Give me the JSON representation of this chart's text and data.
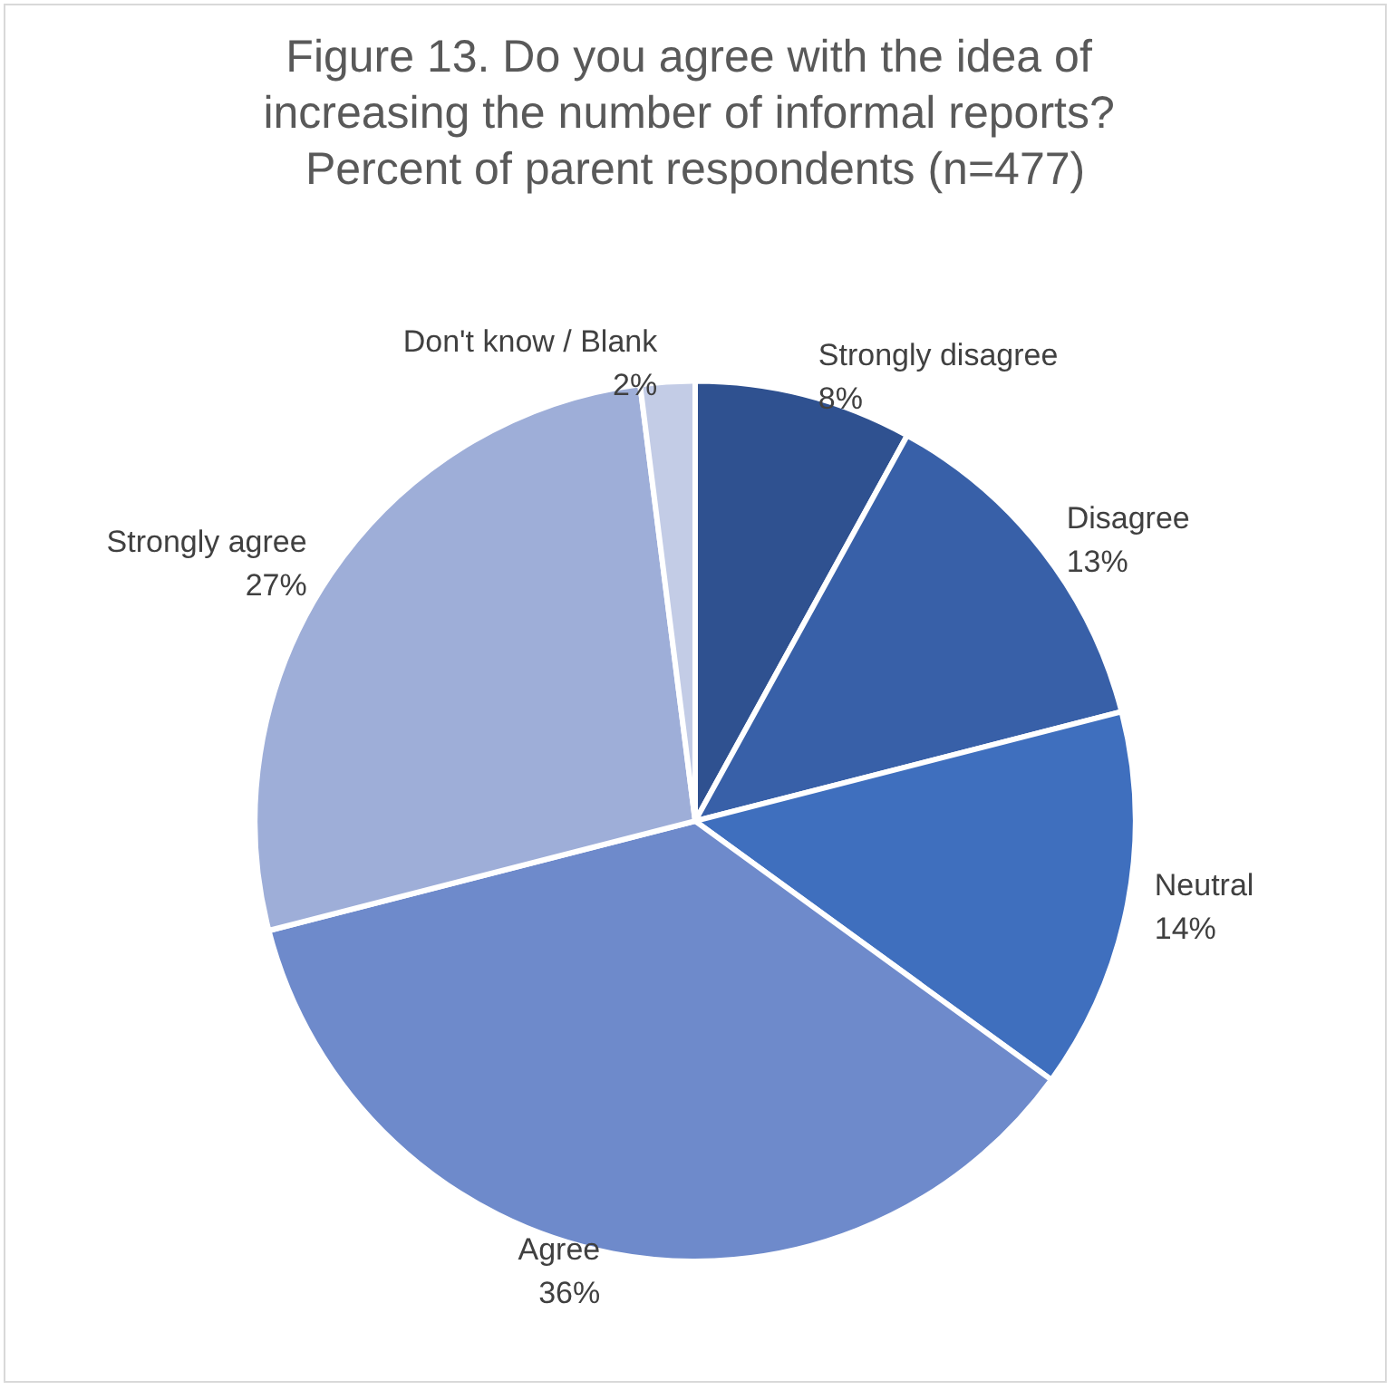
{
  "chart_data": {
    "type": "pie",
    "title": "Figure 13. Do you agree with the idea of increasing the number of informal reports? Percent of parent respondents (n=477)",
    "categories": [
      "Strongly disagree",
      "Disagree",
      "Neutral",
      "Agree",
      "Strongly agree",
      "Don't know / Blank"
    ],
    "values": [
      8,
      13,
      14,
      36,
      27,
      2
    ],
    "colors": [
      "#2f5190",
      "#3860a8",
      "#3f6fbe",
      "#6e8acb",
      "#9eaed8",
      "#c3cce6"
    ],
    "value_labels": [
      "8%",
      "13%",
      "14%",
      "36%",
      "27%",
      "2%"
    ],
    "legend": false
  }
}
